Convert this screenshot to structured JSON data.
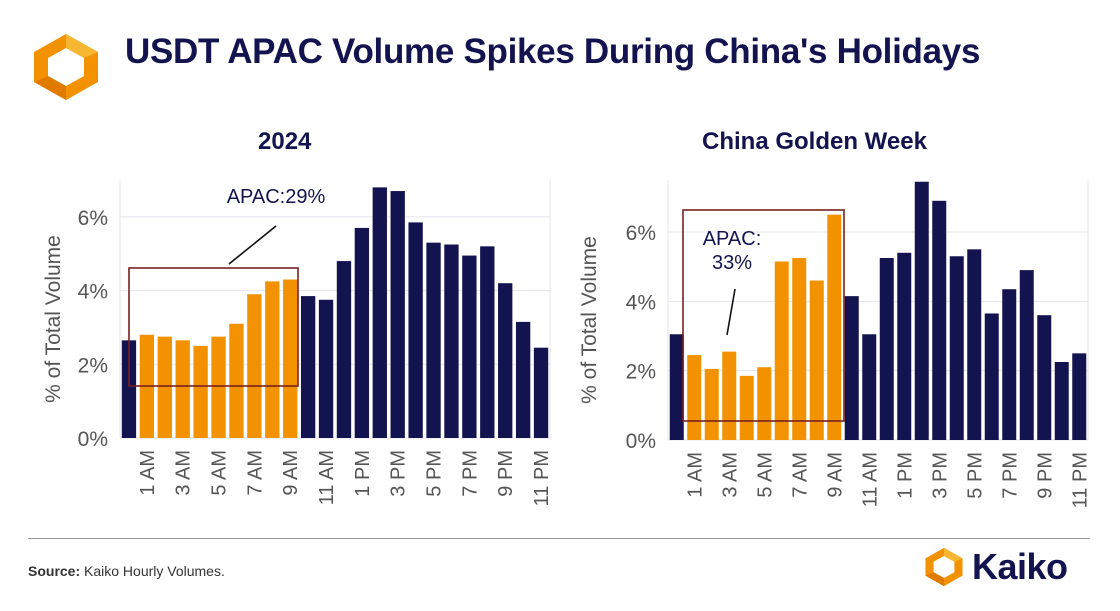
{
  "title": "USDT APAC Volume Spikes During China's Holidays",
  "source": {
    "label": "Source:",
    "text": "Kaiko Hourly Volumes."
  },
  "brand": {
    "name": "Kaiko",
    "logo_icon": "kaiko-logo-icon"
  },
  "colors": {
    "navy": "#13144f",
    "orange": "#f39200",
    "box": "#7a1f1f",
    "grid": "#e4e4ee"
  },
  "chart_data": [
    {
      "type": "bar",
      "title": "2024",
      "ylabel": "% of Total Volume",
      "ylim": [
        0,
        7
      ],
      "yticks": [
        "0%",
        "2%",
        "4%",
        "6%"
      ],
      "ytick_values": [
        0,
        2,
        4,
        6
      ],
      "categories": [
        "0 AM",
        "1 AM",
        "2 AM",
        "3 AM",
        "4 AM",
        "5 AM",
        "6 AM",
        "7 AM",
        "8 AM",
        "9 AM",
        "10 AM",
        "11 AM",
        "12 PM",
        "1 PM",
        "2 PM",
        "3 PM",
        "4 PM",
        "5 PM",
        "6 PM",
        "7 PM",
        "8 PM",
        "9 PM",
        "10 PM",
        "11 PM"
      ],
      "xtick_labels": [
        "1 AM",
        "3 AM",
        "5 AM",
        "7 AM",
        "9 AM",
        "11 AM",
        "1 PM",
        "3 PM",
        "5 PM",
        "7 PM",
        "9 PM",
        "11 PM"
      ],
      "values": [
        2.65,
        2.8,
        2.75,
        2.65,
        2.5,
        2.75,
        3.1,
        3.9,
        4.25,
        4.3,
        3.85,
        3.75,
        4.8,
        5.7,
        6.8,
        6.7,
        5.85,
        5.3,
        5.25,
        4.95,
        5.2,
        4.2,
        3.15,
        2.45
      ],
      "highlight": [
        1,
        2,
        3,
        4,
        5,
        6,
        7,
        8,
        9
      ],
      "annotation": [
        "APAC:29%"
      ]
    },
    {
      "type": "bar",
      "title": "China Golden Week",
      "ylabel": "% of Total Volume",
      "ylim": [
        0,
        7.5
      ],
      "yticks": [
        "0%",
        "2%",
        "4%",
        "6%"
      ],
      "ytick_values": [
        0,
        2,
        4,
        6
      ],
      "categories": [
        "0 AM",
        "1 AM",
        "2 AM",
        "3 AM",
        "4 AM",
        "5 AM",
        "6 AM",
        "7 AM",
        "8 AM",
        "9 AM",
        "10 AM",
        "11 AM",
        "12 PM",
        "1 PM",
        "2 PM",
        "3 PM",
        "4 PM",
        "5 PM",
        "6 PM",
        "7 PM",
        "8 PM",
        "9 PM",
        "10 PM",
        "11 PM"
      ],
      "xtick_labels": [
        "1 AM",
        "3 AM",
        "5 AM",
        "7 AM",
        "9 AM",
        "11 AM",
        "1 PM",
        "3 PM",
        "5 PM",
        "7 PM",
        "9 PM",
        "11 PM"
      ],
      "values": [
        3.05,
        2.45,
        2.05,
        2.55,
        1.85,
        2.1,
        5.15,
        5.25,
        4.6,
        6.5,
        4.15,
        3.05,
        5.25,
        5.4,
        7.45,
        6.9,
        5.3,
        5.5,
        3.65,
        4.35,
        4.9,
        3.6,
        2.25,
        2.5
      ],
      "highlight": [
        1,
        2,
        3,
        4,
        5,
        6,
        7,
        8,
        9
      ],
      "annotation": [
        "APAC:",
        "33%"
      ]
    }
  ]
}
